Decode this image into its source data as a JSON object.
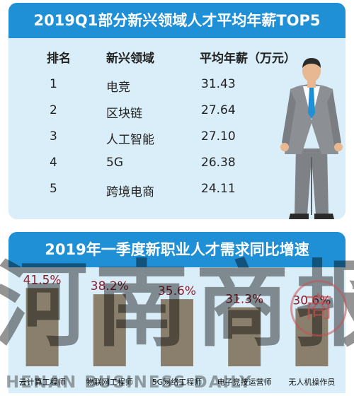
{
  "top_card": {
    "title": "2019Q1部分新兴领域人才平均年薪TOP5",
    "headers": {
      "rank": "排名",
      "field": "新兴领域",
      "salary": "平均年薪（万元）"
    },
    "rows": [
      {
        "rank": "1",
        "field": "电竞",
        "salary": "31.43"
      },
      {
        "rank": "2",
        "field": "区块链",
        "salary": "27.64"
      },
      {
        "rank": "3",
        "field": "人工智能",
        "salary": "27.10"
      },
      {
        "rank": "4",
        "field": "5G",
        "salary": "26.38"
      },
      {
        "rank": "5",
        "field": "跨境电商",
        "salary": "24.11"
      }
    ]
  },
  "bottom_card": {
    "title": "2019年一季度新职业人才需求同比增速"
  },
  "watermark": {
    "text": "河南商报",
    "subtitle": "HENAN BUSINESS DAILY",
    "seal_char": "商"
  },
  "colors": {
    "title_bar": "#1f8fd6",
    "card_bg": "#d9eef8",
    "bar_fill": "#6e5a3e",
    "value_text": "#8b1e2c"
  },
  "chart_data": [
    {
      "type": "table",
      "title": "2019Q1部分新兴领域人才平均年薪TOP5",
      "columns": [
        "排名",
        "新兴领域",
        "平均年薪（万元）"
      ],
      "rows": [
        [
          "1",
          "电竞",
          31.43
        ],
        [
          "2",
          "区块链",
          27.64
        ],
        [
          "3",
          "人工智能",
          27.1
        ],
        [
          "4",
          "5G",
          26.38
        ],
        [
          "5",
          "跨境电商",
          24.11
        ]
      ]
    },
    {
      "type": "bar",
      "title": "2019年一季度新职业人才需求同比增速",
      "categories": [
        "云计算工程师",
        "物联网工程师",
        "5G网络工程师",
        "电子竞技运营师",
        "无人机操作员"
      ],
      "values": [
        41.5,
        38.2,
        35.6,
        31.3,
        30.6
      ],
      "value_labels": [
        "41.5%",
        "38.2%",
        "35.6%",
        "31.3%",
        "30.6%"
      ],
      "ylim": [
        0,
        45
      ],
      "grid": false
    }
  ]
}
